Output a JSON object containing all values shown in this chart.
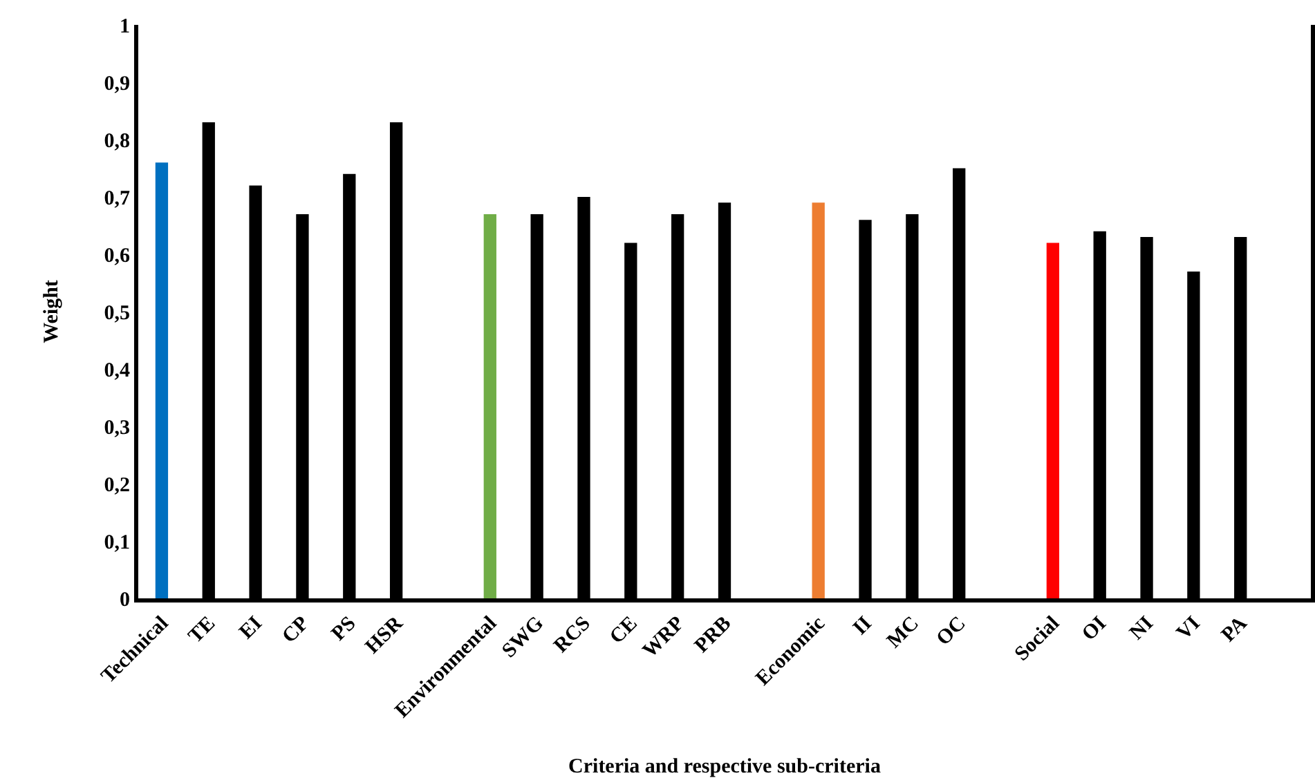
{
  "chart_data": {
    "type": "bar",
    "xlabel": "Criteria and respective sub-criteria",
    "ylabel": "Weight",
    "categories": [
      "Technical",
      "TE",
      "EI",
      "CP",
      "PS",
      "HSR",
      null,
      "Environmental",
      "SWG",
      "RCS",
      "CE",
      "WRP",
      "PRB",
      null,
      "Economic",
      "II",
      "MC",
      "OC",
      null,
      "Social",
      "OI",
      "NI",
      "VI",
      "PA"
    ],
    "values": [
      0.76,
      0.83,
      0.72,
      0.67,
      0.74,
      0.83,
      null,
      0.67,
      0.67,
      0.7,
      0.62,
      0.67,
      0.69,
      null,
      0.69,
      0.66,
      0.67,
      0.75,
      null,
      0.62,
      0.64,
      0.63,
      0.57,
      0.63
    ],
    "colors": [
      "#0070c0",
      "#000000",
      "#000000",
      "#000000",
      "#000000",
      "#000000",
      "#000000",
      "#70ad47",
      "#000000",
      "#000000",
      "#000000",
      "#000000",
      "#000000",
      "#000000",
      "#ed7d31",
      "#000000",
      "#000000",
      "#000000",
      "#000000",
      "#ff0000",
      "#000000",
      "#000000",
      "#000000",
      "#000000"
    ],
    "ylim": [
      0,
      1
    ],
    "yticks": [
      0,
      {
        "value": 0.1,
        "label": "0,1"
      },
      {
        "value": 0.2,
        "label": "0,2"
      },
      {
        "value": 0.3,
        "label": "0,3"
      },
      {
        "value": 0.4,
        "label": "0,4"
      },
      {
        "value": 0.5,
        "label": "0,5"
      },
      {
        "value": 0.6,
        "label": "0,6"
      },
      {
        "value": 0.7,
        "label": "0,7"
      },
      {
        "value": 0.8,
        "label": "0,8"
      },
      {
        "value": 0.9,
        "label": "0,9"
      },
      1
    ],
    "orientation": "vertical"
  }
}
